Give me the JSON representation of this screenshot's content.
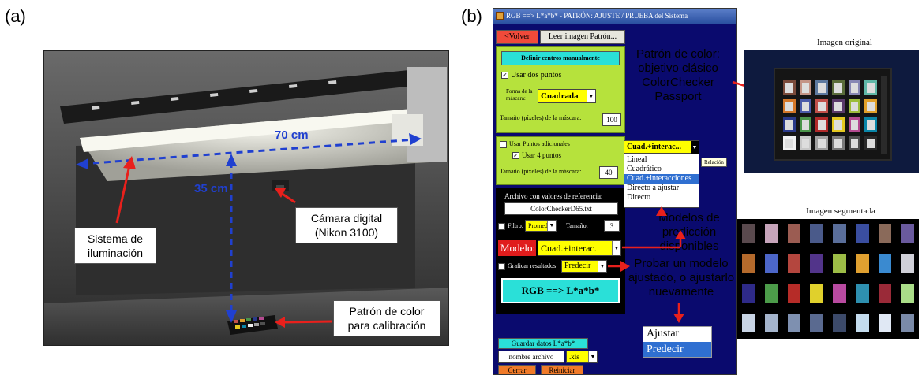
{
  "panel_a": {
    "label": "(a)",
    "dim_horizontal": "70 cm",
    "dim_vertical": "35 cm",
    "callout_lighting": [
      "Sistema de",
      "iluminación"
    ],
    "callout_camera": [
      "Cámara digital",
      "(Nikon 3100)"
    ],
    "callout_target": [
      "Patrón de color",
      "para calibración"
    ]
  },
  "panel_b": {
    "label": "(b)",
    "window": {
      "title": "RGB ==> L*a*b* - PATRÓN: AJUSTE / PRUEBA del Sistema",
      "back_button": "<Volver",
      "read_button": "Leer imagen Patrón...",
      "define_button": "Definir centros manualmente",
      "use_two_points": "Usar dos puntos",
      "mask_shape_label_1": "Forma de la",
      "mask_shape_label_2": "máscara:",
      "mask_shape_value": "Cuadrada",
      "mask_size_label": "Tamaño (píxeles) de la máscara:",
      "mask_size_value": "100",
      "use_additional_points": "Usar Puntos adicionales",
      "use_four_points": "Usar 4 puntos",
      "mask_size_label_2": "Tamaño (píxeles) de la máscara:",
      "mask_size_value_2": "40",
      "ref_file_label": "Archivo con valores de referencia:",
      "ref_file_value": "ColorCheckerD65.txt",
      "filter_label": "Filtro:",
      "filter_value": "Promedio",
      "size_label": "Tamaño:",
      "size_value": "3",
      "model_label": "Modelo:",
      "model_value": "Cuad.+interac.",
      "plot_results": "Graficar resultados",
      "predict_value": "Predecir",
      "convert_button": "RGB ==> L*a*b*",
      "save_button": "Guardar datos L*a*b*",
      "filename_value": "nombre archivo",
      "ext_value": ".xls",
      "close_button": "Cerrar",
      "restart_button": "Reiniciar"
    },
    "model_dropdown": {
      "selected": "Cuad.+interac...",
      "tooltip": "Relación",
      "items": [
        "Lineal",
        "Cuadrático",
        "Cuad.+interacciones",
        "Directo a ajustar",
        "Directo"
      ],
      "highlighted_index": 2
    },
    "action_list": {
      "items": [
        "Ajustar",
        "Predecir"
      ],
      "highlighted_index": 1
    },
    "annotation_pattern": [
      "Patrón de color:",
      "objetivo clásico",
      "ColorChecker",
      "Passport"
    ],
    "annotation_models": [
      "Modelos de",
      "predicción",
      "disponibles"
    ],
    "annotation_test": [
      "Probar un modelo",
      "ajustado, o ajustarlo",
      "nuevamente"
    ],
    "original_title": "Imagen original",
    "segmented_title": "Imagen segmentada"
  },
  "colors": {
    "annotation_arrow": "#e8201c",
    "dimension_arrow": "#2040d0",
    "window_bg": "#0a0a6e",
    "panel_green": "#b6e23c",
    "cyan_button": "#2ae0d8",
    "highlight_blue": "#2f6fd1"
  },
  "segmented_colors": [
    [
      "#5a4a4e",
      "#c6a4ba",
      "#9b5c52",
      "#4a5a8a",
      "#5a6e9a",
      "#3a4ea0",
      "#8a6a5a",
      "#6a5a9e"
    ],
    [
      "#b46a2c",
      "#4c66c8",
      "#b4463e",
      "#52348a",
      "#9cbc46",
      "#e0a030",
      "#3a8ad0",
      "#d0d0d8"
    ],
    [
      "#2e2a88",
      "#4c9c4a",
      "#b62c28",
      "#e0d02c",
      "#b84aa0",
      "#2e90b0",
      "#9a2a38",
      "#aadd88"
    ],
    [
      "#c8d4e4",
      "#a4b4cc",
      "#7e90b0",
      "#5a6a90",
      "#3c4a6a",
      "#c4dcee",
      "#e0e8f4",
      "#7a8aa8"
    ]
  ],
  "checker_colors": [
    [
      "#7a4a3a",
      "#c49486",
      "#5e7aa0",
      "#5a6c3a",
      "#8888b4",
      "#60b8a8"
    ],
    [
      "#d4782a",
      "#4a5aa8",
      "#c0504a",
      "#5a3a6a",
      "#9cbc3c",
      "#e0a02a"
    ],
    [
      "#2a3a8a",
      "#4a944a",
      "#b02a2a",
      "#e4c820",
      "#b44a90",
      "#0a86a8"
    ],
    [
      "#f0f0f0",
      "#c8c8c8",
      "#a0a0a0",
      "#7a7a7a",
      "#505050",
      "#2a2a2a"
    ]
  ]
}
